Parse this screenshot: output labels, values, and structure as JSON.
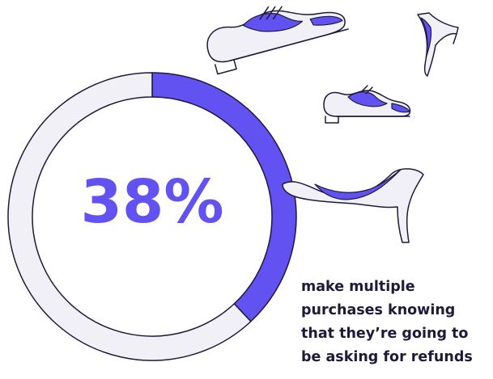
{
  "chart_data": {
    "type": "pie",
    "style": "donut",
    "values": [
      38,
      62
    ],
    "highlight_index": 0,
    "center_label": "38%",
    "title": "",
    "legend": "none"
  },
  "caption_lines": [
    "make multiple",
    "purchases knowing",
    "that they’re going to",
    "be asking for refunds"
  ],
  "illustration": {
    "icons": [
      "oxford-shoe-icon",
      "oxford-shoe-icon",
      "high-heel-icon",
      "high-heel-icon"
    ]
  },
  "colors": {
    "highlight": "#6352f2",
    "track": "#f1f0f7",
    "outline": "#1d1a3a",
    "label": "#6352f2",
    "text": "#1d1a3a",
    "shoe_light": "#f1f0f7"
  }
}
